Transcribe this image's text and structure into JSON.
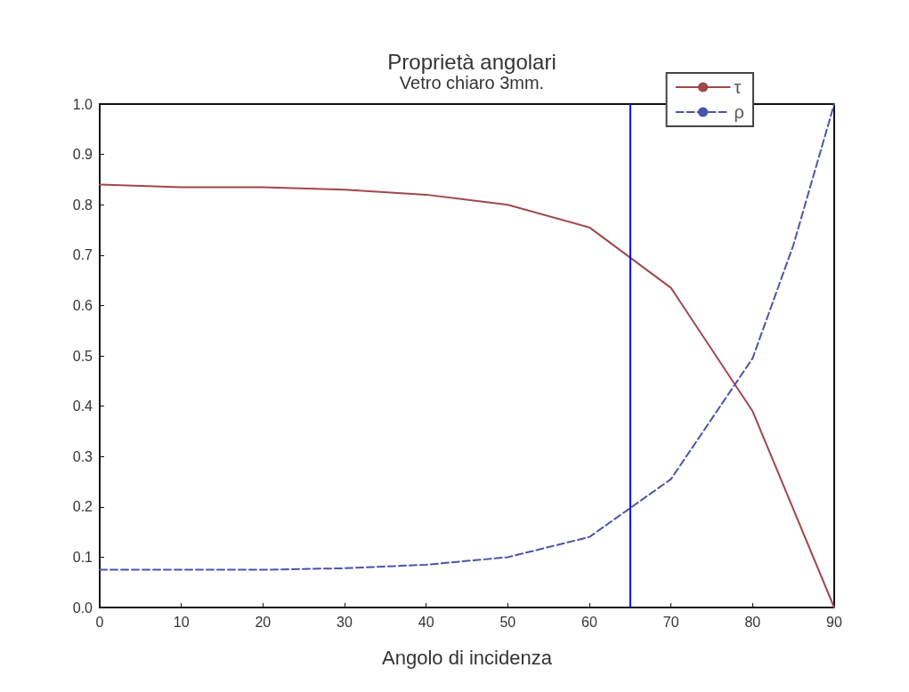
{
  "chart_data": {
    "type": "line",
    "title": "Proprietà angolari",
    "subtitle": "Vetro chiaro 3mm.",
    "xlabel": "Angolo di incidenza",
    "x": [
      0,
      10,
      20,
      30,
      40,
      50,
      60,
      70,
      80,
      90
    ],
    "series": [
      {
        "name": "τ",
        "color": "#a0484c",
        "line_style": "solid",
        "values": [
          0.84,
          0.835,
          0.835,
          0.83,
          0.82,
          0.8,
          0.755,
          0.635,
          0.39,
          0.0
        ]
      },
      {
        "name": "ρ",
        "color": "#4a55a8",
        "line_style": "dashed",
        "x": [
          0,
          10,
          20,
          30,
          40,
          50,
          60,
          70,
          80,
          85,
          90
        ],
        "values": [
          0.075,
          0.075,
          0.075,
          0.078,
          0.085,
          0.1,
          0.14,
          0.255,
          0.495,
          0.72,
          1.0
        ]
      }
    ],
    "xlim": [
      0,
      90
    ],
    "xticks": [
      0,
      10,
      20,
      30,
      40,
      50,
      60,
      70,
      80,
      90
    ],
    "ylim": [
      0,
      1
    ],
    "yticks": [
      {
        "value": 0,
        "label": "0.0"
      },
      {
        "value": 0.1,
        "label": "0.1"
      },
      {
        "value": 0.2,
        "label": "0.2"
      },
      {
        "value": 0.3,
        "label": "0.3"
      },
      {
        "value": 0.4,
        "label": "0.4"
      },
      {
        "value": 0.5,
        "label": "0.5"
      },
      {
        "value": 0.6,
        "label": "0.6"
      },
      {
        "value": 0.7,
        "label": "0.7"
      },
      {
        "value": 0.8,
        "label": "0.8"
      },
      {
        "value": 0.9,
        "label": "0.9"
      },
      {
        "value": 1,
        "label": "1.0"
      }
    ],
    "ref_lines": [
      {
        "axis": "x",
        "value": 65,
        "color": "#0000ff"
      }
    ],
    "grid": false,
    "legend": "top right",
    "marker": "none"
  }
}
